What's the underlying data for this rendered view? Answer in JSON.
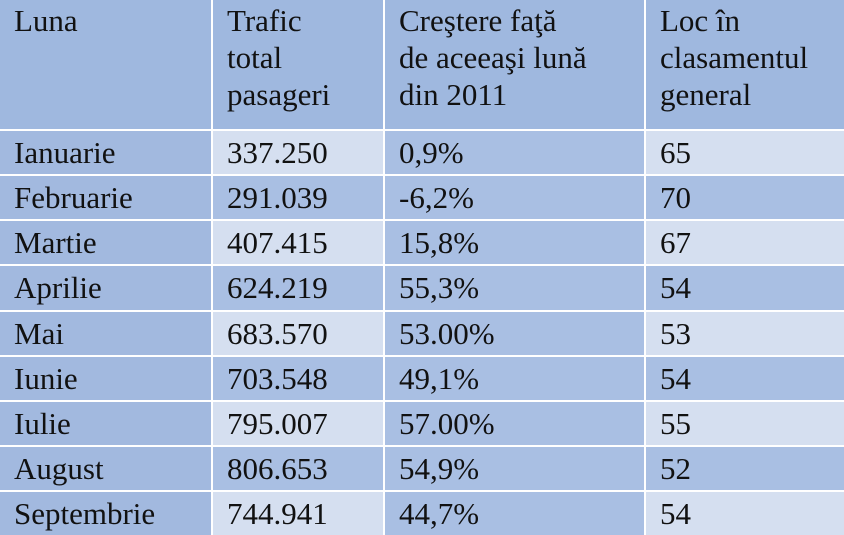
{
  "table": {
    "header": [
      [
        "Luna"
      ],
      [
        "Trafic",
        "total",
        "pasageri"
      ],
      [
        "Creştere faţă",
        "de aceeaşi lună",
        "din 2011"
      ],
      [
        "Loc în",
        "clasamentul",
        "general"
      ]
    ],
    "rows": [
      [
        "Ianuarie",
        "337.250",
        "0,9%",
        "65"
      ],
      [
        "Februarie",
        "291.039",
        "-6,2%",
        "70"
      ],
      [
        "Martie",
        "407.415",
        "15,8%",
        "67"
      ],
      [
        "Aprilie",
        "624.219",
        "55,3%",
        "54"
      ],
      [
        "Mai",
        "683.570",
        "53.00%",
        "53"
      ],
      [
        "Iunie",
        "703.548",
        "49,1%",
        "54"
      ],
      [
        "Iulie",
        "795.007",
        "57.00%",
        "55"
      ],
      [
        "August",
        "806.653",
        "54,9%",
        "52"
      ],
      [
        "Septembrie",
        "744.941",
        "44,7%",
        "54"
      ]
    ]
  }
}
